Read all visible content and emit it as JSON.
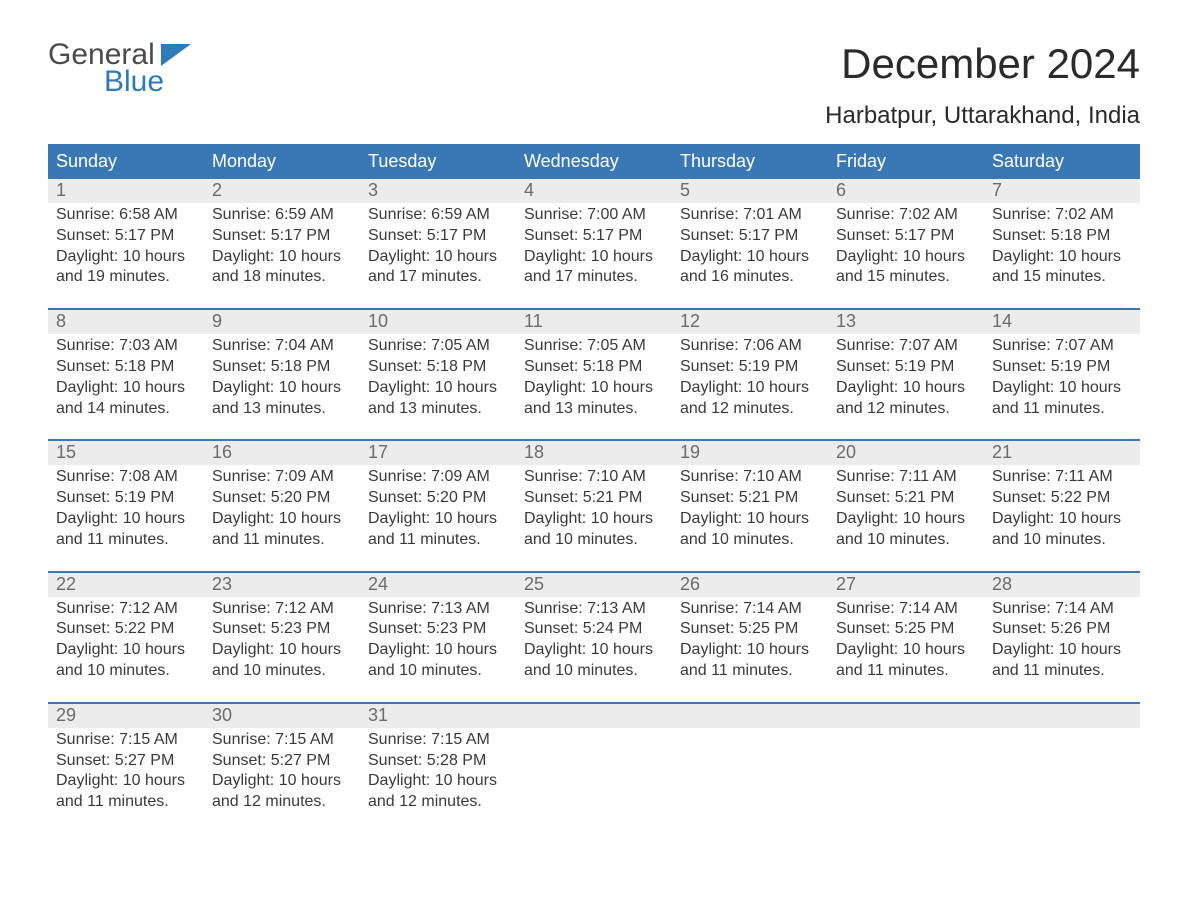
{
  "logo": {
    "general": "General",
    "blue": "Blue"
  },
  "title": "December 2024",
  "location": "Harbatpur, Uttarakhand, India",
  "colors": {
    "header_bg": "#3a78b5",
    "header_text": "#ffffff",
    "daynum_bg": "#ececec",
    "daynum_text": "#6b6b6b",
    "body_text": "#3a3a3a",
    "week_border": "#3a78b5",
    "logo_blue": "#2f7ab8",
    "logo_gray": "#4b4b4b",
    "page_bg": "#ffffff"
  },
  "typography": {
    "title_fontsize": 42,
    "location_fontsize": 24,
    "dow_fontsize": 18,
    "daynum_fontsize": 18,
    "detail_fontsize": 16,
    "font_family": "Arial"
  },
  "layout": {
    "columns": 7,
    "weeks": 5
  },
  "dow": [
    "Sunday",
    "Monday",
    "Tuesday",
    "Wednesday",
    "Thursday",
    "Friday",
    "Saturday"
  ],
  "weeks": [
    [
      {
        "d": "1",
        "sr": "Sunrise: 6:58 AM",
        "ss": "Sunset: 5:17 PM",
        "dl1": "Daylight: 10 hours",
        "dl2": "and 19 minutes."
      },
      {
        "d": "2",
        "sr": "Sunrise: 6:59 AM",
        "ss": "Sunset: 5:17 PM",
        "dl1": "Daylight: 10 hours",
        "dl2": "and 18 minutes."
      },
      {
        "d": "3",
        "sr": "Sunrise: 6:59 AM",
        "ss": "Sunset: 5:17 PM",
        "dl1": "Daylight: 10 hours",
        "dl2": "and 17 minutes."
      },
      {
        "d": "4",
        "sr": "Sunrise: 7:00 AM",
        "ss": "Sunset: 5:17 PM",
        "dl1": "Daylight: 10 hours",
        "dl2": "and 17 minutes."
      },
      {
        "d": "5",
        "sr": "Sunrise: 7:01 AM",
        "ss": "Sunset: 5:17 PM",
        "dl1": "Daylight: 10 hours",
        "dl2": "and 16 minutes."
      },
      {
        "d": "6",
        "sr": "Sunrise: 7:02 AM",
        "ss": "Sunset: 5:17 PM",
        "dl1": "Daylight: 10 hours",
        "dl2": "and 15 minutes."
      },
      {
        "d": "7",
        "sr": "Sunrise: 7:02 AM",
        "ss": "Sunset: 5:18 PM",
        "dl1": "Daylight: 10 hours",
        "dl2": "and 15 minutes."
      }
    ],
    [
      {
        "d": "8",
        "sr": "Sunrise: 7:03 AM",
        "ss": "Sunset: 5:18 PM",
        "dl1": "Daylight: 10 hours",
        "dl2": "and 14 minutes."
      },
      {
        "d": "9",
        "sr": "Sunrise: 7:04 AM",
        "ss": "Sunset: 5:18 PM",
        "dl1": "Daylight: 10 hours",
        "dl2": "and 13 minutes."
      },
      {
        "d": "10",
        "sr": "Sunrise: 7:05 AM",
        "ss": "Sunset: 5:18 PM",
        "dl1": "Daylight: 10 hours",
        "dl2": "and 13 minutes."
      },
      {
        "d": "11",
        "sr": "Sunrise: 7:05 AM",
        "ss": "Sunset: 5:18 PM",
        "dl1": "Daylight: 10 hours",
        "dl2": "and 13 minutes."
      },
      {
        "d": "12",
        "sr": "Sunrise: 7:06 AM",
        "ss": "Sunset: 5:19 PM",
        "dl1": "Daylight: 10 hours",
        "dl2": "and 12 minutes."
      },
      {
        "d": "13",
        "sr": "Sunrise: 7:07 AM",
        "ss": "Sunset: 5:19 PM",
        "dl1": "Daylight: 10 hours",
        "dl2": "and 12 minutes."
      },
      {
        "d": "14",
        "sr": "Sunrise: 7:07 AM",
        "ss": "Sunset: 5:19 PM",
        "dl1": "Daylight: 10 hours",
        "dl2": "and 11 minutes."
      }
    ],
    [
      {
        "d": "15",
        "sr": "Sunrise: 7:08 AM",
        "ss": "Sunset: 5:19 PM",
        "dl1": "Daylight: 10 hours",
        "dl2": "and 11 minutes."
      },
      {
        "d": "16",
        "sr": "Sunrise: 7:09 AM",
        "ss": "Sunset: 5:20 PM",
        "dl1": "Daylight: 10 hours",
        "dl2": "and 11 minutes."
      },
      {
        "d": "17",
        "sr": "Sunrise: 7:09 AM",
        "ss": "Sunset: 5:20 PM",
        "dl1": "Daylight: 10 hours",
        "dl2": "and 11 minutes."
      },
      {
        "d": "18",
        "sr": "Sunrise: 7:10 AM",
        "ss": "Sunset: 5:21 PM",
        "dl1": "Daylight: 10 hours",
        "dl2": "and 10 minutes."
      },
      {
        "d": "19",
        "sr": "Sunrise: 7:10 AM",
        "ss": "Sunset: 5:21 PM",
        "dl1": "Daylight: 10 hours",
        "dl2": "and 10 minutes."
      },
      {
        "d": "20",
        "sr": "Sunrise: 7:11 AM",
        "ss": "Sunset: 5:21 PM",
        "dl1": "Daylight: 10 hours",
        "dl2": "and 10 minutes."
      },
      {
        "d": "21",
        "sr": "Sunrise: 7:11 AM",
        "ss": "Sunset: 5:22 PM",
        "dl1": "Daylight: 10 hours",
        "dl2": "and 10 minutes."
      }
    ],
    [
      {
        "d": "22",
        "sr": "Sunrise: 7:12 AM",
        "ss": "Sunset: 5:22 PM",
        "dl1": "Daylight: 10 hours",
        "dl2": "and 10 minutes."
      },
      {
        "d": "23",
        "sr": "Sunrise: 7:12 AM",
        "ss": "Sunset: 5:23 PM",
        "dl1": "Daylight: 10 hours",
        "dl2": "and 10 minutes."
      },
      {
        "d": "24",
        "sr": "Sunrise: 7:13 AM",
        "ss": "Sunset: 5:23 PM",
        "dl1": "Daylight: 10 hours",
        "dl2": "and 10 minutes."
      },
      {
        "d": "25",
        "sr": "Sunrise: 7:13 AM",
        "ss": "Sunset: 5:24 PM",
        "dl1": "Daylight: 10 hours",
        "dl2": "and 10 minutes."
      },
      {
        "d": "26",
        "sr": "Sunrise: 7:14 AM",
        "ss": "Sunset: 5:25 PM",
        "dl1": "Daylight: 10 hours",
        "dl2": "and 11 minutes."
      },
      {
        "d": "27",
        "sr": "Sunrise: 7:14 AM",
        "ss": "Sunset: 5:25 PM",
        "dl1": "Daylight: 10 hours",
        "dl2": "and 11 minutes."
      },
      {
        "d": "28",
        "sr": "Sunrise: 7:14 AM",
        "ss": "Sunset: 5:26 PM",
        "dl1": "Daylight: 10 hours",
        "dl2": "and 11 minutes."
      }
    ],
    [
      {
        "d": "29",
        "sr": "Sunrise: 7:15 AM",
        "ss": "Sunset: 5:27 PM",
        "dl1": "Daylight: 10 hours",
        "dl2": "and 11 minutes."
      },
      {
        "d": "30",
        "sr": "Sunrise: 7:15 AM",
        "ss": "Sunset: 5:27 PM",
        "dl1": "Daylight: 10 hours",
        "dl2": "and 12 minutes."
      },
      {
        "d": "31",
        "sr": "Sunrise: 7:15 AM",
        "ss": "Sunset: 5:28 PM",
        "dl1": "Daylight: 10 hours",
        "dl2": "and 12 minutes."
      },
      null,
      null,
      null,
      null
    ]
  ]
}
